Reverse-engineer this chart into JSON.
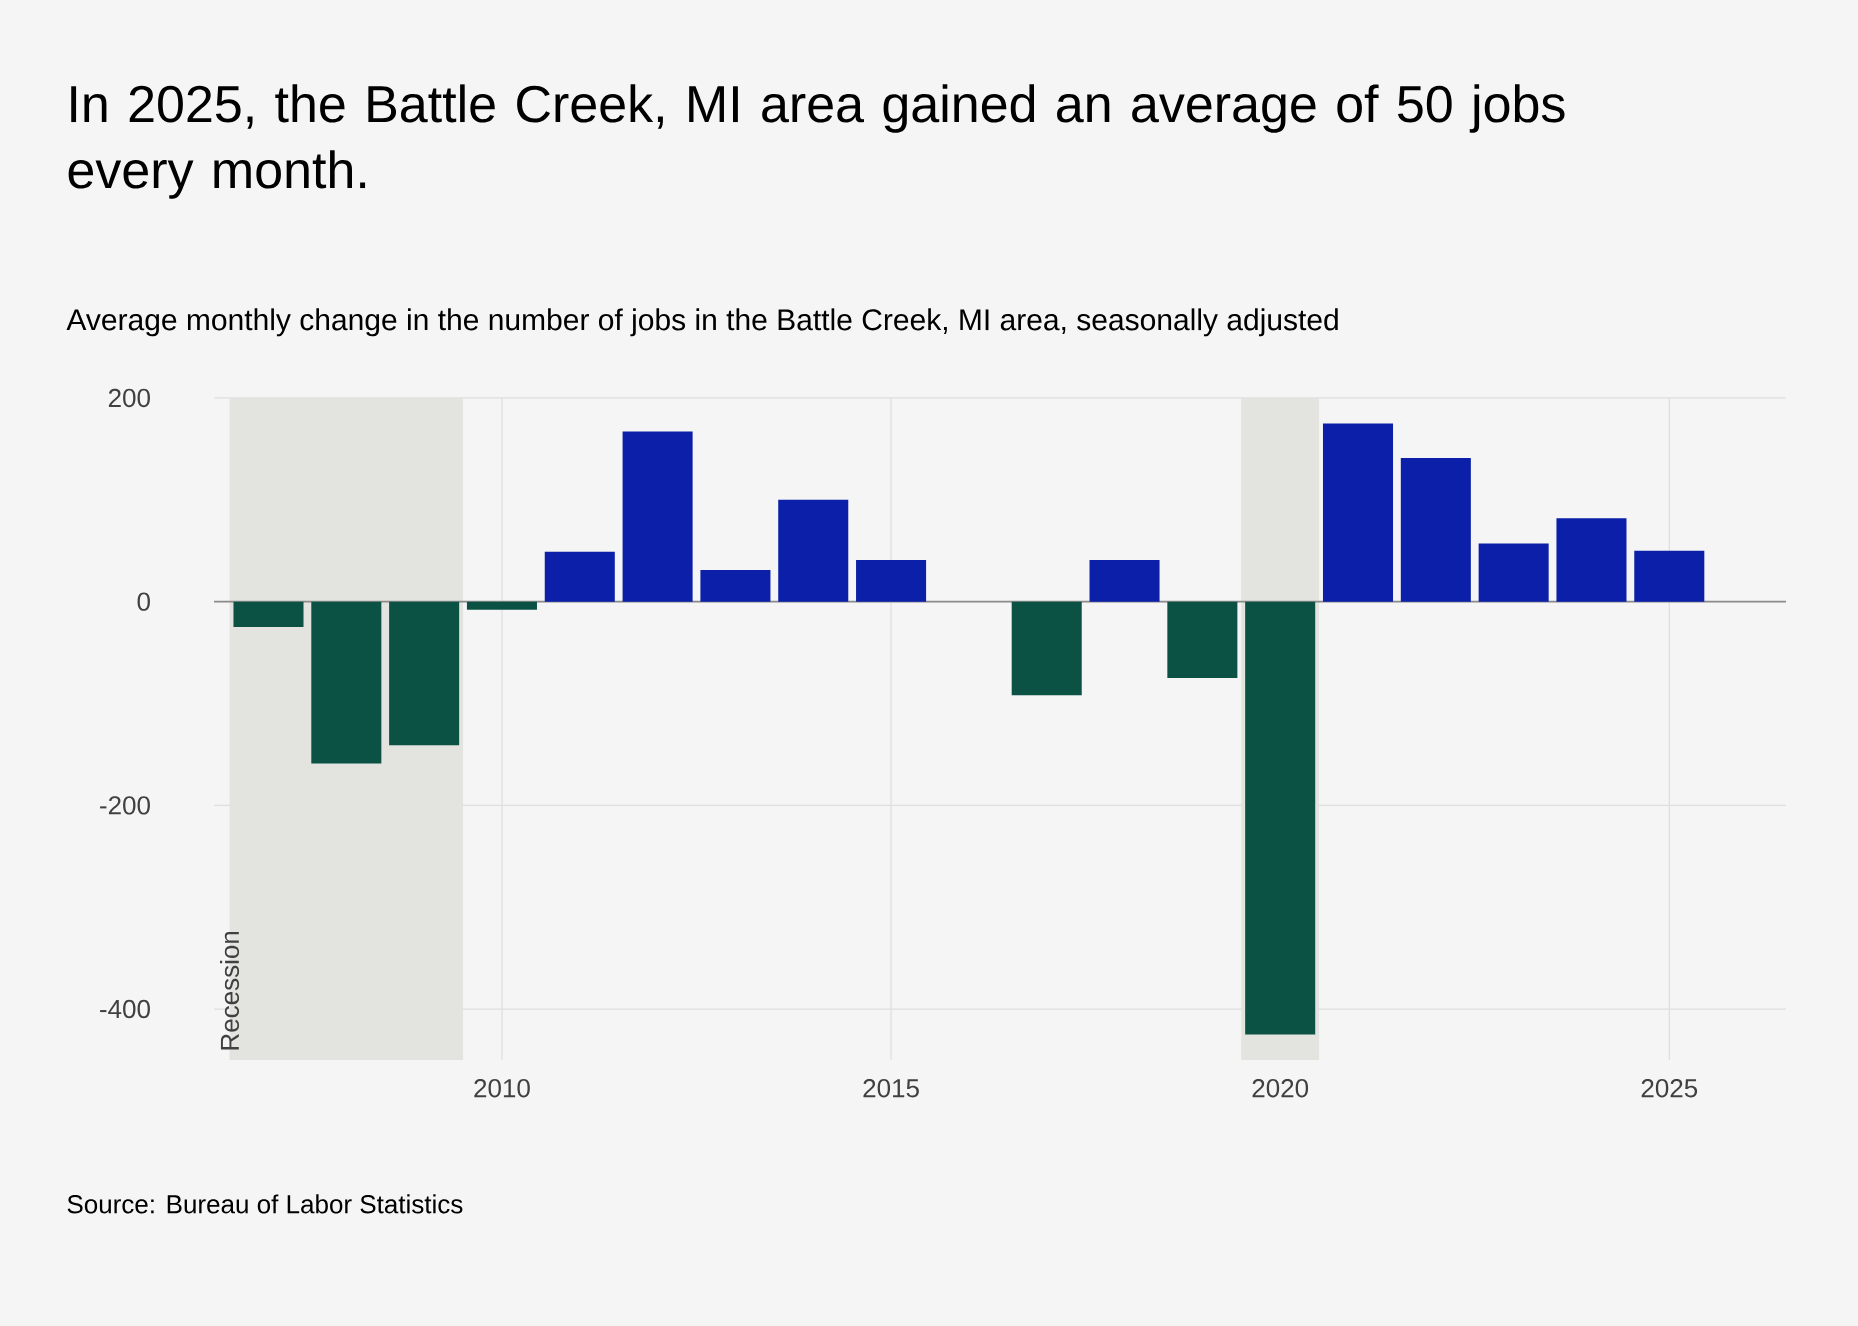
{
  "chart_data": {
    "type": "bar",
    "title": "In 2025, the Battle Creek, MI area gained an average of 50 jobs every month.",
    "subtitle": "Average monthly change in the number of jobs in the Battle Creek, MI area, seasonally adjusted",
    "x": [
      2007,
      2008,
      2009,
      2010,
      2011,
      2012,
      2013,
      2014,
      2015,
      2016,
      2017,
      2018,
      2019,
      2020,
      2021,
      2022,
      2023,
      2024,
      2025
    ],
    "values": [
      -25,
      -159,
      -141,
      -8,
      49,
      167,
      31,
      100,
      41,
      null,
      -92,
      41,
      -75,
      -425,
      175,
      141,
      57,
      82,
      50
    ],
    "colors": [
      "#0b5244",
      "#0b5244",
      "#0b5244",
      "#0b5244",
      "#0b1fa8",
      "#0b1fa8",
      "#0b1fa8",
      "#0b1fa8",
      "#0b1fa8",
      "#0b1fa8",
      "#0b5244",
      "#0b1fa8",
      "#0b5244",
      "#0b5244",
      "#0b1fa8",
      "#0b1fa8",
      "#0b1fa8",
      "#0b1fa8",
      "#0b1fa8"
    ],
    "xlim": [
      2006.3,
      2026.5
    ],
    "ylim": [
      -450,
      200
    ],
    "xticks": [
      2010,
      2015,
      2020,
      2025
    ],
    "yticks": [
      -400,
      -200,
      0,
      200
    ],
    "grid": true,
    "bands": [
      {
        "axis": "x",
        "from": 2006.5,
        "to": 2009.5,
        "label": "Recession",
        "color": "#e3e3df"
      },
      {
        "axis": "x",
        "from": 2019.5,
        "to": 2020.5,
        "color": "#e3e3df"
      }
    ],
    "annotations": [
      "Source: Bureau of Labor Statistics"
    ]
  }
}
